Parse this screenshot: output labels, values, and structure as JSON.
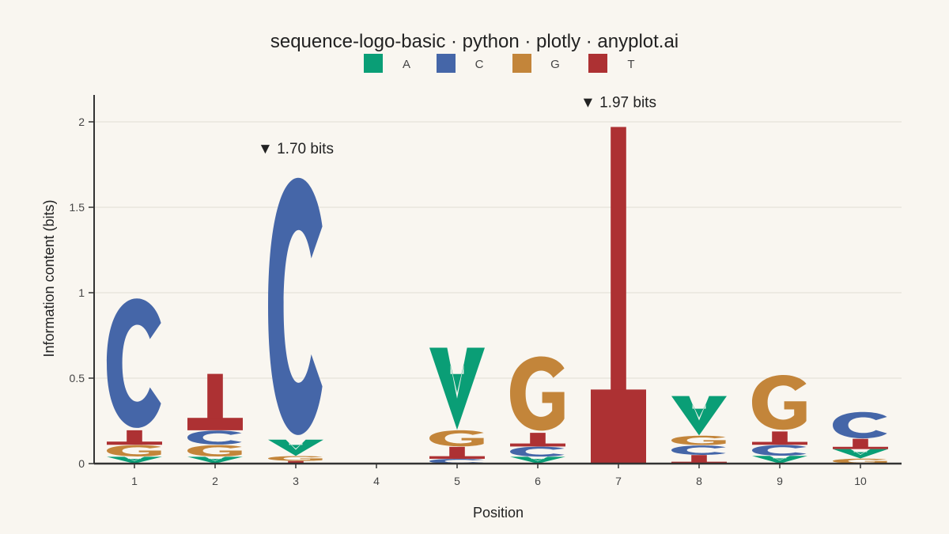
{
  "title": "sequence-logo-basic · python · plotly · anyplot.ai",
  "colors": {
    "background": "#f9f6f0",
    "A": "#0a9e76",
    "C": "#4566a8",
    "G": "#c3853a",
    "T": "#ad3133",
    "axis": "#333333",
    "grid": "#e1ddd5",
    "text": "#222222"
  },
  "chart_data": {
    "type": "sequence-logo",
    "title": "sequence-logo-basic · python · plotly · anyplot.ai",
    "xlabel": "Position",
    "ylabel": "Information content (bits)",
    "ylim": [
      0,
      2.15
    ],
    "yticks": [
      0,
      0.5,
      1,
      1.5,
      2
    ],
    "ytick_labels": [
      "0",
      "0.5",
      "1",
      "1.5",
      "2"
    ],
    "grid": true,
    "legend": {
      "position": "top-center",
      "items": [
        "A",
        "C",
        "G",
        "T"
      ]
    },
    "positions": [
      {
        "x": 1,
        "label": "1",
        "stack": [
          {
            "base": "A",
            "height": 0.04
          },
          {
            "base": "G",
            "height": 0.07
          },
          {
            "base": "T",
            "height": 0.085
          },
          {
            "base": "C",
            "height": 0.785
          }
        ]
      },
      {
        "x": 2,
        "label": "2",
        "stack": [
          {
            "base": "A",
            "height": 0.04
          },
          {
            "base": "G",
            "height": 0.07
          },
          {
            "base": "C",
            "height": 0.085
          },
          {
            "base": "T",
            "height": 0.33
          }
        ]
      },
      {
        "x": 3,
        "label": "3",
        "stack": [
          {
            "base": "T",
            "height": 0.015
          },
          {
            "base": "G",
            "height": 0.03
          },
          {
            "base": "A",
            "height": 0.095
          },
          {
            "base": "C",
            "height": 1.56
          }
        ]
      },
      {
        "x": 4,
        "label": "4",
        "stack": []
      },
      {
        "x": 5,
        "label": "5",
        "stack": [
          {
            "base": "C",
            "height": 0.028
          },
          {
            "base": "T",
            "height": 0.07
          },
          {
            "base": "G",
            "height": 0.1
          },
          {
            "base": "A",
            "height": 0.48
          }
        ]
      },
      {
        "x": 6,
        "label": "6",
        "stack": [
          {
            "base": "A",
            "height": 0.04
          },
          {
            "base": "C",
            "height": 0.06
          },
          {
            "base": "T",
            "height": 0.08
          },
          {
            "base": "G",
            "height": 0.46
          }
        ]
      },
      {
        "x": 7,
        "label": "7",
        "stack": [
          {
            "base": "T",
            "height": 1.97
          }
        ]
      },
      {
        "x": 8,
        "label": "8",
        "stack": [
          {
            "base": "T",
            "height": 0.05
          },
          {
            "base": "C",
            "height": 0.057
          },
          {
            "base": "G",
            "height": 0.058
          },
          {
            "base": "A",
            "height": 0.23
          }
        ]
      },
      {
        "x": 9,
        "label": "9",
        "stack": [
          {
            "base": "A",
            "height": 0.045
          },
          {
            "base": "C",
            "height": 0.065
          },
          {
            "base": "T",
            "height": 0.078
          },
          {
            "base": "G",
            "height": 0.34
          }
        ]
      },
      {
        "x": 10,
        "label": "10",
        "stack": [
          {
            "base": "G",
            "height": 0.03
          },
          {
            "base": "A",
            "height": 0.055
          },
          {
            "base": "T",
            "height": 0.06
          },
          {
            "base": "C",
            "height": 0.16
          }
        ]
      }
    ],
    "annotations": [
      {
        "x": 3,
        "y": 1.7,
        "text": "▼ 1.70 bits"
      },
      {
        "x": 7,
        "y": 1.97,
        "text": "▼ 1.97 bits"
      }
    ]
  }
}
